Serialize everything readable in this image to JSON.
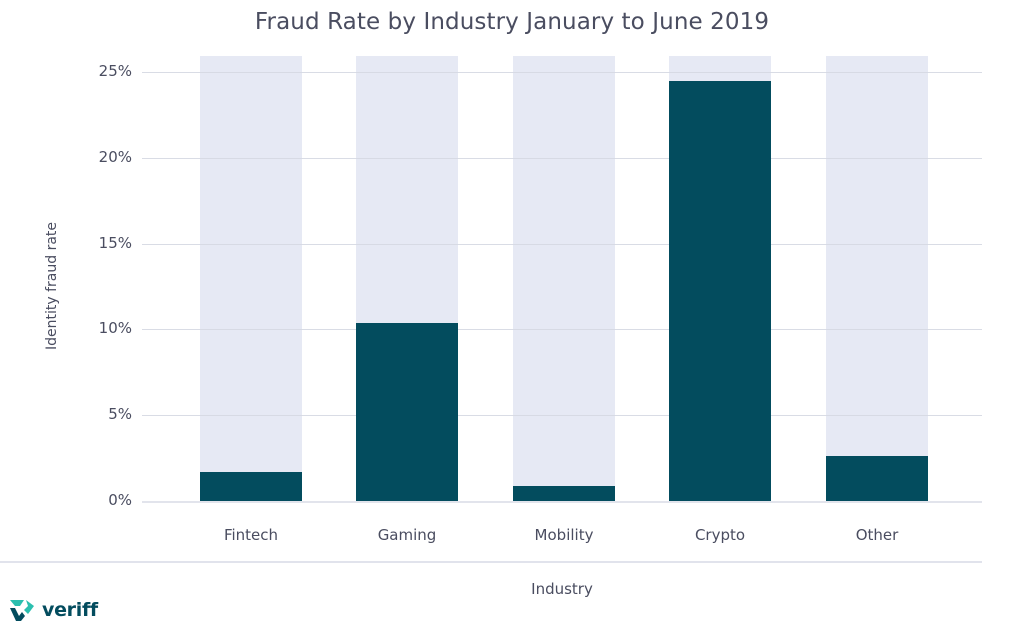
{
  "chart_data": {
    "type": "bar",
    "title": "Fraud Rate by Industry January to June 2019",
    "xlabel": "Industry",
    "ylabel": "Identity fraud rate",
    "categories": [
      "Fintech",
      "Gaming",
      "Mobility",
      "Crypto",
      "Other"
    ],
    "values": [
      1.7,
      10.4,
      0.9,
      24.5,
      2.6
    ],
    "unit": "%",
    "ylim": [
      0,
      25
    ],
    "yticks": [
      "0%",
      "5%",
      "10%",
      "15%",
      "20%",
      "25%"
    ],
    "grid": true,
    "legend": null,
    "colors": {
      "bar": "#034c5e",
      "bar_background": "#e6e9f4",
      "grid": "#d5d8e2",
      "text": "#4a4d60"
    }
  },
  "branding": {
    "logo_text": "veriff"
  }
}
